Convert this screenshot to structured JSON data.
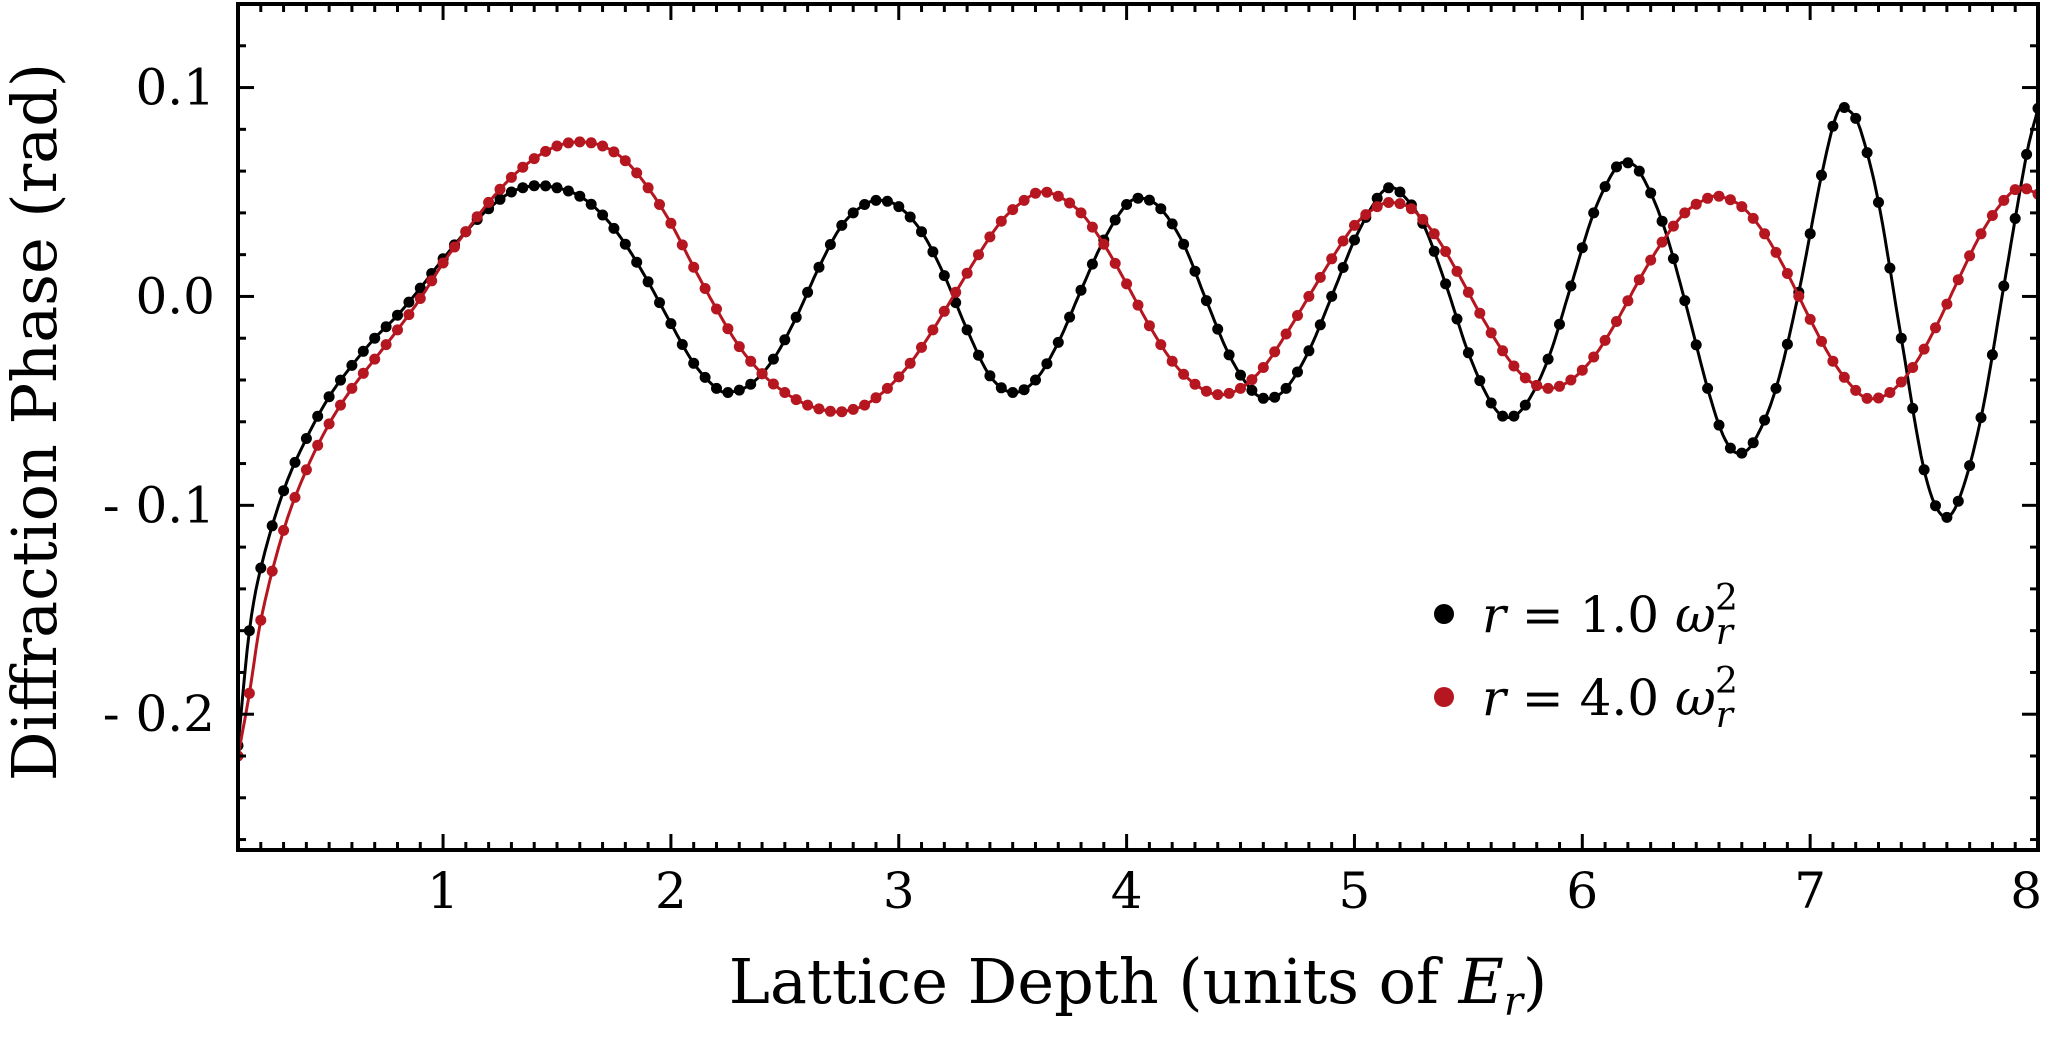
{
  "chart_data": {
    "type": "scatter",
    "xlabel": "Lattice Depth (units of Er)",
    "ylabel": "Diffraction Phase (rad)",
    "xlim": [
      0.1,
      8.0
    ],
    "ylim": [
      -0.265,
      0.14
    ],
    "x_ticks": [
      1,
      2,
      3,
      4,
      5,
      6,
      7,
      8
    ],
    "x_tick_labels": [
      "1",
      "2",
      "3",
      "4",
      "5",
      "6",
      "7",
      "8"
    ],
    "y_ticks": [
      0.1,
      0.0,
      -0.1,
      -0.2
    ],
    "y_tick_labels": [
      "0.1",
      "0.0",
      "- 0.1",
      "- 0.2"
    ],
    "grid": false,
    "legend_position": "lower-right",
    "x_step": 0.05,
    "series": [
      {
        "name": "r = 1.0 ωr²",
        "color": "#000000",
        "keypoints": [
          [
            0.1,
            -0.215
          ],
          [
            0.15,
            -0.16
          ],
          [
            0.2,
            -0.13
          ],
          [
            0.3,
            -0.093
          ],
          [
            0.4,
            -0.068
          ],
          [
            0.5,
            -0.048
          ],
          [
            0.6,
            -0.033
          ],
          [
            0.7,
            -0.02
          ],
          [
            0.8,
            -0.009
          ],
          [
            0.9,
            0.004
          ],
          [
            1.0,
            0.018
          ],
          [
            1.1,
            0.031
          ],
          [
            1.2,
            0.042
          ],
          [
            1.3,
            0.05
          ],
          [
            1.4,
            0.053
          ],
          [
            1.5,
            0.052
          ],
          [
            1.6,
            0.048
          ],
          [
            1.7,
            0.039
          ],
          [
            1.8,
            0.025
          ],
          [
            1.9,
            0.007
          ],
          [
            2.0,
            -0.013
          ],
          [
            2.1,
            -0.032
          ],
          [
            2.2,
            -0.044
          ],
          [
            2.25,
            -0.046
          ],
          [
            2.35,
            -0.042
          ],
          [
            2.45,
            -0.03
          ],
          [
            2.55,
            -0.01
          ],
          [
            2.65,
            0.014
          ],
          [
            2.75,
            0.034
          ],
          [
            2.85,
            0.044
          ],
          [
            2.92,
            0.046
          ],
          [
            3.0,
            0.043
          ],
          [
            3.1,
            0.031
          ],
          [
            3.2,
            0.01
          ],
          [
            3.3,
            -0.016
          ],
          [
            3.4,
            -0.038
          ],
          [
            3.5,
            -0.046
          ],
          [
            3.6,
            -0.04
          ],
          [
            3.7,
            -0.022
          ],
          [
            3.8,
            0.003
          ],
          [
            3.9,
            0.027
          ],
          [
            4.0,
            0.044
          ],
          [
            4.07,
            0.047
          ],
          [
            4.15,
            0.042
          ],
          [
            4.25,
            0.025
          ],
          [
            4.35,
            -0.002
          ],
          [
            4.45,
            -0.028
          ],
          [
            4.55,
            -0.045
          ],
          [
            4.62,
            -0.049
          ],
          [
            4.7,
            -0.044
          ],
          [
            4.8,
            -0.026
          ],
          [
            4.9,
            0.0
          ],
          [
            5.0,
            0.027
          ],
          [
            5.1,
            0.047
          ],
          [
            5.15,
            0.052
          ],
          [
            5.2,
            0.05
          ],
          [
            5.3,
            0.035
          ],
          [
            5.4,
            0.006
          ],
          [
            5.5,
            -0.027
          ],
          [
            5.6,
            -0.051
          ],
          [
            5.67,
            -0.058
          ],
          [
            5.75,
            -0.052
          ],
          [
            5.85,
            -0.03
          ],
          [
            5.95,
            0.005
          ],
          [
            6.05,
            0.04
          ],
          [
            6.15,
            0.062
          ],
          [
            6.2,
            0.064
          ],
          [
            6.25,
            0.06
          ],
          [
            6.35,
            0.036
          ],
          [
            6.45,
            -0.002
          ],
          [
            6.55,
            -0.044
          ],
          [
            6.62,
            -0.067
          ],
          [
            6.68,
            -0.075
          ],
          [
            6.75,
            -0.07
          ],
          [
            6.85,
            -0.044
          ],
          [
            6.95,
            0.002
          ],
          [
            7.05,
            0.058
          ],
          [
            7.12,
            0.088
          ],
          [
            7.17,
            0.089
          ],
          [
            7.22,
            0.08
          ],
          [
            7.3,
            0.045
          ],
          [
            7.4,
            -0.02
          ],
          [
            7.5,
            -0.083
          ],
          [
            7.58,
            -0.105
          ],
          [
            7.65,
            -0.098
          ],
          [
            7.75,
            -0.058
          ],
          [
            7.85,
            0.005
          ],
          [
            7.95,
            0.068
          ],
          [
            8.0,
            0.09
          ]
        ]
      },
      {
        "name": "r = 4.0 ωr²",
        "color": "#b5161f",
        "keypoints": [
          [
            0.1,
            -0.22
          ],
          [
            0.15,
            -0.19
          ],
          [
            0.2,
            -0.155
          ],
          [
            0.3,
            -0.112
          ],
          [
            0.4,
            -0.083
          ],
          [
            0.5,
            -0.061
          ],
          [
            0.6,
            -0.044
          ],
          [
            0.7,
            -0.03
          ],
          [
            0.8,
            -0.016
          ],
          [
            0.9,
            -0.001
          ],
          [
            1.0,
            0.016
          ],
          [
            1.1,
            0.031
          ],
          [
            1.2,
            0.045
          ],
          [
            1.3,
            0.057
          ],
          [
            1.4,
            0.066
          ],
          [
            1.5,
            0.072
          ],
          [
            1.6,
            0.074
          ],
          [
            1.7,
            0.072
          ],
          [
            1.8,
            0.065
          ],
          [
            1.9,
            0.052
          ],
          [
            2.0,
            0.035
          ],
          [
            2.1,
            0.014
          ],
          [
            2.2,
            -0.006
          ],
          [
            2.3,
            -0.024
          ],
          [
            2.4,
            -0.037
          ],
          [
            2.5,
            -0.046
          ],
          [
            2.6,
            -0.052
          ],
          [
            2.7,
            -0.055
          ],
          [
            2.76,
            -0.055
          ],
          [
            2.85,
            -0.052
          ],
          [
            2.95,
            -0.044
          ],
          [
            3.05,
            -0.032
          ],
          [
            3.15,
            -0.016
          ],
          [
            3.25,
            0.002
          ],
          [
            3.35,
            0.02
          ],
          [
            3.45,
            0.036
          ],
          [
            3.55,
            0.046
          ],
          [
            3.62,
            0.05
          ],
          [
            3.7,
            0.048
          ],
          [
            3.8,
            0.04
          ],
          [
            3.9,
            0.025
          ],
          [
            4.0,
            0.006
          ],
          [
            4.1,
            -0.014
          ],
          [
            4.2,
            -0.031
          ],
          [
            4.3,
            -0.042
          ],
          [
            4.4,
            -0.047
          ],
          [
            4.5,
            -0.044
          ],
          [
            4.6,
            -0.034
          ],
          [
            4.7,
            -0.018
          ],
          [
            4.8,
            0.0
          ],
          [
            4.9,
            0.018
          ],
          [
            5.0,
            0.034
          ],
          [
            5.1,
            0.043
          ],
          [
            5.16,
            0.045
          ],
          [
            5.25,
            0.042
          ],
          [
            5.35,
            0.03
          ],
          [
            5.45,
            0.012
          ],
          [
            5.55,
            -0.008
          ],
          [
            5.65,
            -0.026
          ],
          [
            5.75,
            -0.039
          ],
          [
            5.85,
            -0.044
          ],
          [
            5.95,
            -0.04
          ],
          [
            6.05,
            -0.029
          ],
          [
            6.15,
            -0.012
          ],
          [
            6.25,
            0.008
          ],
          [
            6.35,
            0.026
          ],
          [
            6.45,
            0.04
          ],
          [
            6.55,
            0.047
          ],
          [
            6.6,
            0.048
          ],
          [
            6.7,
            0.043
          ],
          [
            6.8,
            0.03
          ],
          [
            6.9,
            0.011
          ],
          [
            7.0,
            -0.011
          ],
          [
            7.1,
            -0.031
          ],
          [
            7.2,
            -0.045
          ],
          [
            7.26,
            -0.049
          ],
          [
            7.35,
            -0.046
          ],
          [
            7.45,
            -0.034
          ],
          [
            7.55,
            -0.015
          ],
          [
            7.65,
            0.008
          ],
          [
            7.75,
            0.03
          ],
          [
            7.85,
            0.046
          ],
          [
            7.92,
            0.052
          ],
          [
            8.0,
            0.049
          ]
        ]
      }
    ]
  }
}
